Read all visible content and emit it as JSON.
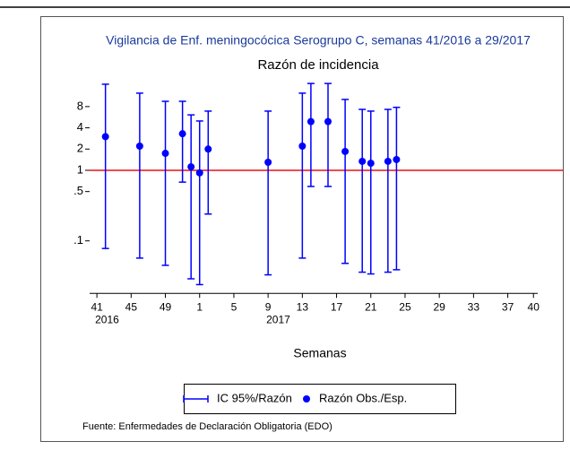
{
  "chart_data": {
    "type": "errorbar",
    "title": "Vigilancia de Enf. meningocócica Serogrupo C, semanas 41/2016 a 29/2017",
    "subtitle": "Razón de incidencia",
    "x_label": "Semanas",
    "source": "Fuente: Enfermedades de Declaración Obligatoria (EDO)",
    "x": [
      1,
      5,
      8,
      10,
      11,
      12,
      13,
      20,
      24,
      25,
      27,
      29,
      31,
      32,
      34,
      35
    ],
    "series": [
      {
        "name": "Razón Obs./Esp.",
        "color": "#0000ff",
        "values": [
          3.0,
          2.2,
          1.74,
          3.3,
          1.12,
          0.92,
          2.0,
          1.3,
          2.2,
          4.9,
          4.9,
          1.85,
          1.34,
          1.26,
          1.34,
          1.42
        ]
      }
    ],
    "ci": {
      "name": "IC 95%/Razón",
      "color": "#0000ff",
      "lower": [
        0.078,
        0.057,
        0.045,
        0.68,
        0.029,
        0.024,
        0.24,
        0.033,
        0.057,
        0.59,
        0.59,
        0.048,
        0.036,
        0.034,
        0.036,
        0.039
      ],
      "upper": [
        16.6,
        12.4,
        9.5,
        9.5,
        6.1,
        5.0,
        6.9,
        6.9,
        12.4,
        17,
        17,
        10.1,
        7.3,
        6.9,
        7.3,
        7.8
      ]
    },
    "reference_line": {
      "value": 1,
      "color": "#e8101a"
    },
    "xlim": [
      -0.85,
      51.5
    ],
    "xticks": [
      {
        "value": 0,
        "label": "41"
      },
      {
        "value": 4,
        "label": "45"
      },
      {
        "value": 8,
        "label": "49"
      },
      {
        "value": 12,
        "label": "1"
      },
      {
        "value": 16,
        "label": "5"
      },
      {
        "value": 20,
        "label": "9"
      },
      {
        "value": 24,
        "label": "13"
      },
      {
        "value": 28,
        "label": "17"
      },
      {
        "value": 32,
        "label": "21"
      },
      {
        "value": 36,
        "label": "25"
      },
      {
        "value": 40,
        "label": "29"
      },
      {
        "value": 44,
        "label": "33"
      },
      {
        "value": 48,
        "label": "37"
      },
      {
        "value": 51,
        "label": "40"
      }
    ],
    "x_year_labels": [
      {
        "value": 0,
        "label": "2016"
      },
      {
        "value": 20,
        "label": "2017"
      }
    ],
    "ylim": [
      0.018,
      30
    ],
    "yscale": "log",
    "yticks": [
      {
        "value": 0.1,
        "label": ".1"
      },
      {
        "value": 0.5,
        "label": ".5"
      },
      1,
      2,
      4,
      8
    ]
  }
}
